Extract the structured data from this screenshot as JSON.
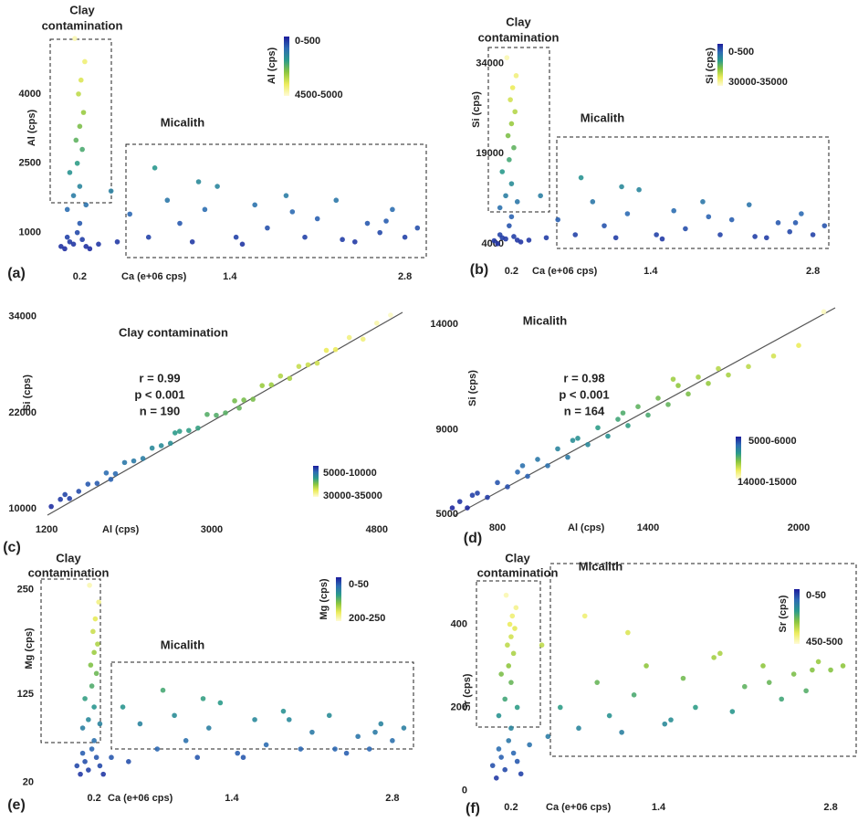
{
  "chart_data": [
    {
      "type": "scatter",
      "panel_label": "(a)",
      "x_label": "Ca (e+06 cps)",
      "y_label": "Al (cps)",
      "annotations": [
        "Clay",
        "contamination",
        "Micalith"
      ],
      "colorbar": {
        "title": "Al (cps)",
        "low": "0-500",
        "high": "4500-5000"
      },
      "colormap": [
        "#1c1c9c",
        "#2d6bb4",
        "#2a9a8c",
        "#8cc63f",
        "#ecec5c",
        "#fffbd6"
      ],
      "xlim": [
        0,
        3
      ],
      "ylim": [
        400,
        5500
      ],
      "xticks": [
        0.2,
        1.4,
        2.8
      ],
      "yticks": [
        1000,
        2500,
        4000
      ],
      "x": [
        0.05,
        0.08,
        0.1,
        0.12,
        0.15,
        0.18,
        0.2,
        0.22,
        0.25,
        0.28,
        0.1,
        0.15,
        0.2,
        0.25,
        0.12,
        0.18,
        0.22,
        0.17,
        0.2,
        0.23,
        0.19,
        0.21,
        0.24,
        0.16,
        0.35,
        0.5,
        0.6,
        0.75,
        0.9,
        1.0,
        1.1,
        1.2,
        1.3,
        1.45,
        1.6,
        1.7,
        1.85,
        2.0,
        2.1,
        2.25,
        2.4,
        2.5,
        2.6,
        2.7,
        2.8,
        2.9,
        0.45,
        0.8,
        1.15,
        1.5,
        1.9,
        2.3,
        2.65
      ],
      "values": [
        700,
        650,
        900,
        800,
        750,
        1000,
        1200,
        850,
        700,
        650,
        1500,
        1800,
        2000,
        1600,
        2300,
        2500,
        2800,
        3000,
        3300,
        3600,
        4000,
        4300,
        4700,
        5200,
        750,
        800,
        1400,
        900,
        1700,
        1200,
        800,
        1500,
        2000,
        900,
        1600,
        1100,
        1800,
        900,
        1300,
        1700,
        800,
        1200,
        1000,
        1500,
        900,
        1100,
        1900,
        2400,
        2100,
        750,
        1450,
        850,
        1250
      ]
    },
    {
      "type": "scatter",
      "panel_label": "(b)",
      "x_label": "Ca (e+06 cps)",
      "y_label": "Si (cps)",
      "annotations": [
        "Clay",
        "contamination",
        "Micalith"
      ],
      "colorbar": {
        "title": "Si (cps)",
        "low": "0-500",
        "high": "30000-35000"
      },
      "colormap": [
        "#1c1c9c",
        "#2d6bb4",
        "#2a9a8c",
        "#8cc63f",
        "#ecec5c",
        "#fffbd6"
      ],
      "xlim": [
        0,
        3
      ],
      "ylim": [
        2000,
        37000
      ],
      "xticks": [
        0.2,
        1.4,
        2.8
      ],
      "yticks": [
        4000,
        19000,
        34000
      ],
      "x": [
        0.05,
        0.08,
        0.1,
        0.12,
        0.15,
        0.18,
        0.2,
        0.22,
        0.25,
        0.28,
        0.1,
        0.15,
        0.2,
        0.25,
        0.12,
        0.18,
        0.22,
        0.17,
        0.2,
        0.23,
        0.19,
        0.21,
        0.24,
        0.16,
        0.35,
        0.5,
        0.6,
        0.75,
        0.9,
        1.0,
        1.1,
        1.2,
        1.3,
        1.45,
        1.6,
        1.7,
        1.85,
        2.0,
        2.1,
        2.25,
        2.4,
        2.5,
        2.6,
        2.7,
        2.8,
        2.9,
        0.45,
        0.8,
        1.15,
        1.5,
        1.9,
        2.3,
        2.65
      ],
      "values": [
        4500,
        4000,
        5500,
        5000,
        4800,
        7000,
        8500,
        5200,
        4600,
        4300,
        10000,
        12000,
        14000,
        11000,
        16000,
        18000,
        20000,
        22000,
        24000,
        26000,
        28000,
        30000,
        32000,
        35000,
        4600,
        5000,
        8000,
        5500,
        11000,
        7000,
        5000,
        9000,
        13000,
        5500,
        9500,
        6500,
        11000,
        5500,
        8000,
        10500,
        5000,
        7500,
        6000,
        9000,
        5500,
        7000,
        12000,
        15000,
        13500,
        4800,
        8500,
        5200,
        7500
      ]
    },
    {
      "type": "scatter",
      "panel_label": "(c)",
      "x_label": "Al (cps)",
      "y_label": "Si (cps)",
      "annotations": [
        "Clay contamination",
        "r = 0.99",
        "p < 0.001",
        "n = 190"
      ],
      "colorbar": {
        "low": "5000-10000",
        "high": "30000-35000"
      },
      "colormap": [
        "#1c1c9c",
        "#2d6bb4",
        "#2a9a8c",
        "#8cc63f",
        "#ecec5c",
        "#fffbd6"
      ],
      "xlim": [
        1000,
        5200
      ],
      "ylim": [
        9000,
        35000
      ],
      "xticks": [
        1200,
        3000,
        4800
      ],
      "yticks": [
        10000,
        22000,
        34000
      ],
      "x": [
        1250,
        1350,
        1450,
        1550,
        1650,
        1750,
        1850,
        1950,
        2050,
        2150,
        2250,
        2350,
        2450,
        2550,
        2650,
        2750,
        2850,
        2950,
        3050,
        3150,
        3250,
        3350,
        3450,
        3550,
        3650,
        3750,
        3850,
        3950,
        4050,
        4150,
        4250,
        4350,
        4500,
        4650,
        4800,
        4950,
        1400,
        1900,
        2600,
        3300
      ],
      "values": [
        10300,
        11200,
        11300,
        12200,
        13100,
        13200,
        14500,
        14400,
        15800,
        16000,
        16300,
        17600,
        17900,
        18200,
        19700,
        19800,
        20100,
        21800,
        21700,
        22000,
        23500,
        23600,
        23700,
        25400,
        25500,
        26600,
        26300,
        27800,
        28000,
        28200,
        29800,
        29900,
        31400,
        31200,
        33200,
        34200,
        11800,
        13700,
        19500,
        22600
      ]
    },
    {
      "type": "scatter",
      "panel_label": "(d)",
      "x_label": "Al (cps)",
      "y_label": "Si (cps)",
      "annotations": [
        "Micalith",
        "r = 0.98",
        "p < 0.001",
        "n = 164"
      ],
      "colorbar": {
        "low": "5000-6000",
        "high": "14000-15000"
      },
      "colormap": [
        "#1c1c9c",
        "#2d6bb4",
        "#2a9a8c",
        "#8cc63f",
        "#ecec5c",
        "#fffbd6"
      ],
      "xlim": [
        600,
        2200
      ],
      "ylim": [
        5000,
        15000
      ],
      "xticks": [
        800,
        1400,
        2000
      ],
      "yticks": [
        5000,
        9000,
        14000
      ],
      "x": [
        620,
        650,
        680,
        720,
        760,
        800,
        840,
        880,
        920,
        960,
        1000,
        1040,
        1080,
        1120,
        1160,
        1200,
        1240,
        1280,
        1320,
        1360,
        1400,
        1440,
        1480,
        1520,
        1560,
        1600,
        1640,
        1680,
        1720,
        1800,
        1900,
        2000,
        2100,
        700,
        900,
        1100,
        1300,
        1500
      ],
      "values": [
        5300,
        5600,
        5300,
        6000,
        5800,
        6500,
        6300,
        7000,
        6800,
        7600,
        7300,
        8100,
        7700,
        8600,
        8300,
        9100,
        8700,
        9500,
        9200,
        10100,
        9700,
        10500,
        10200,
        11100,
        10700,
        11500,
        11200,
        11900,
        11600,
        12000,
        12500,
        13000,
        14600,
        5900,
        7300,
        8500,
        9800,
        11400
      ]
    },
    {
      "type": "scatter",
      "panel_label": "(e)",
      "x_label": "Ca (e+06 cps)",
      "y_label": "Mg (cps)",
      "annotations": [
        "Clay",
        "contamination",
        "Micalith"
      ],
      "colorbar": {
        "title": "Mg (cps)",
        "low": "0-50",
        "high": "200-250"
      },
      "colormap": [
        "#1c1c9c",
        "#2d6bb4",
        "#2a9a8c",
        "#8cc63f",
        "#ecec5c",
        "#fffbd6"
      ],
      "xlim": [
        0,
        3
      ],
      "ylim": [
        10,
        270
      ],
      "xticks": [
        0.2,
        1.4,
        2.8
      ],
      "yticks": [
        20,
        125,
        250
      ],
      "x": [
        0.05,
        0.08,
        0.1,
        0.12,
        0.15,
        0.18,
        0.2,
        0.22,
        0.25,
        0.28,
        0.1,
        0.15,
        0.2,
        0.25,
        0.12,
        0.18,
        0.22,
        0.17,
        0.2,
        0.23,
        0.19,
        0.21,
        0.24,
        0.16,
        0.35,
        0.5,
        0.6,
        0.75,
        0.9,
        1.0,
        1.1,
        1.2,
        1.3,
        1.45,
        1.6,
        1.7,
        1.85,
        2.0,
        2.1,
        2.25,
        2.4,
        2.5,
        2.6,
        2.7,
        2.8,
        2.9,
        0.45,
        0.8,
        1.15,
        1.5,
        1.9,
        2.3,
        2.65
      ],
      "values": [
        40,
        30,
        55,
        45,
        35,
        60,
        70,
        50,
        40,
        30,
        85,
        95,
        110,
        90,
        120,
        135,
        150,
        160,
        175,
        185,
        200,
        215,
        235,
        255,
        50,
        45,
        90,
        60,
        100,
        70,
        50,
        85,
        115,
        55,
        95,
        65,
        105,
        60,
        80,
        100,
        55,
        75,
        60,
        90,
        70,
        85,
        110,
        130,
        120,
        50,
        95,
        60,
        80
      ]
    },
    {
      "type": "scatter",
      "panel_label": "(f)",
      "x_label": "Ca (e+06 cps)",
      "y_label": "Sr (cps)",
      "annotations": [
        "Clay",
        "contamination",
        "Micalith"
      ],
      "colorbar": {
        "title": "Sr (cps)",
        "low": "0-50",
        "high": "450-500"
      },
      "colormap": [
        "#1c1c9c",
        "#2d6bb4",
        "#2a9a8c",
        "#8cc63f",
        "#ecec5c",
        "#fffbd6"
      ],
      "xlim": [
        0,
        3
      ],
      "ylim": [
        -10,
        500
      ],
      "xticks": [
        0.2,
        1.4,
        2.8
      ],
      "yticks": [
        0,
        200,
        400
      ],
      "x": [
        0.05,
        0.08,
        0.1,
        0.12,
        0.15,
        0.18,
        0.2,
        0.22,
        0.25,
        0.28,
        0.1,
        0.15,
        0.2,
        0.25,
        0.12,
        0.18,
        0.22,
        0.17,
        0.2,
        0.23,
        0.19,
        0.21,
        0.24,
        0.16,
        0.35,
        0.5,
        0.6,
        0.75,
        0.9,
        1.0,
        1.1,
        1.2,
        1.3,
        1.45,
        1.6,
        1.7,
        1.85,
        2.0,
        2.1,
        2.25,
        2.4,
        2.5,
        2.6,
        2.7,
        2.8,
        2.9,
        0.45,
        0.8,
        1.15,
        1.5,
        1.9,
        2.3,
        2.65
      ],
      "values": [
        60,
        30,
        100,
        80,
        50,
        120,
        150,
        90,
        70,
        40,
        180,
        220,
        260,
        200,
        280,
        300,
        330,
        350,
        370,
        390,
        400,
        420,
        440,
        470,
        110,
        130,
        200,
        150,
        260,
        180,
        140,
        230,
        300,
        160,
        270,
        200,
        320,
        190,
        250,
        300,
        220,
        280,
        240,
        310,
        290,
        300,
        350,
        420,
        380,
        170,
        330,
        260,
        290
      ]
    }
  ]
}
